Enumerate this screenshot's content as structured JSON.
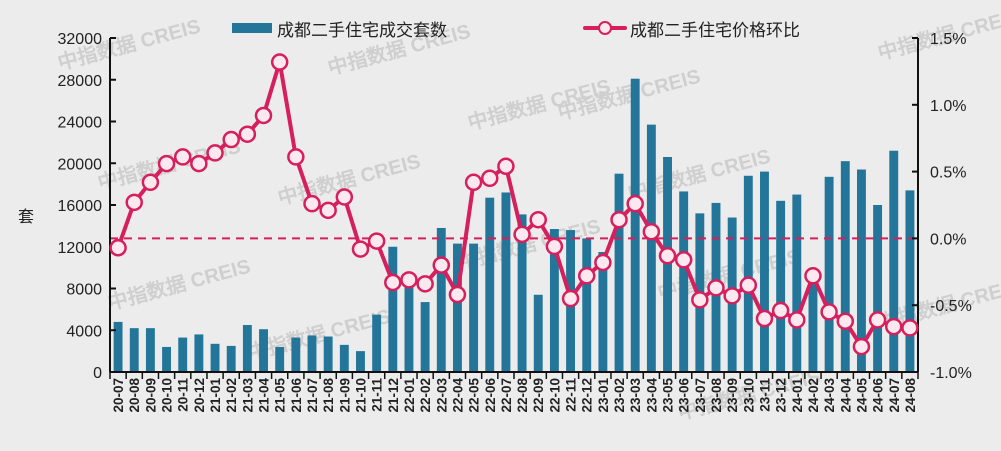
{
  "legend": {
    "bar_label": "成都二手住宅成交套数",
    "line_label": "成都二手住宅价格环比"
  },
  "axes": {
    "left_ylabel": "套",
    "left_ticks": [
      "0",
      "4000",
      "8000",
      "12000",
      "16000",
      "20000",
      "24000",
      "28000",
      "32000"
    ],
    "right_ticks": [
      "-1.0%",
      "-0.5%",
      "0.0%",
      "0.5%",
      "1.0%",
      "1.5%"
    ]
  },
  "watermark": "中指数据 CREIS",
  "colors": {
    "bar": "#23759a",
    "line": "#d61f5c",
    "background": "#ececec"
  },
  "chart_data": {
    "type": "bar+line",
    "title": "",
    "xlabel": "",
    "ylabel": "套",
    "ylim": [
      0,
      32000
    ],
    "y2lim": [
      -1.0,
      1.5
    ],
    "legend_position": "top",
    "grid": false,
    "reference_line": {
      "axis": "y2",
      "value": 0.0,
      "style": "dashed"
    },
    "categories": [
      "20-07",
      "20-08",
      "20-09",
      "20-10",
      "20-11",
      "20-12",
      "21-01",
      "21-02",
      "21-03",
      "21-04",
      "21-05",
      "21-06",
      "21-07",
      "21-08",
      "21-09",
      "21-10",
      "21-11",
      "21-12",
      "22-01",
      "22-02",
      "22-03",
      "22-04",
      "22-05",
      "22-06",
      "22-07",
      "22-08",
      "22-09",
      "22-10",
      "22-11",
      "22-12",
      "23-01",
      "23-02",
      "23-03",
      "23-04",
      "23-05",
      "23-06",
      "23-07",
      "23-08",
      "23-09",
      "23-10",
      "23-11",
      "23-12",
      "24-01",
      "24-02",
      "24-03",
      "24-04",
      "24-05",
      "24-06",
      "24-07",
      "24-08"
    ],
    "series": [
      {
        "name": "成都二手住宅成交套数",
        "type": "bar",
        "axis": "left",
        "values": [
          4800,
          4200,
          4200,
          2400,
          3300,
          3600,
          2700,
          2500,
          4500,
          4100,
          2400,
          3300,
          3500,
          3400,
          2600,
          2000,
          5500,
          12000,
          8800,
          6700,
          13800,
          12300,
          12300,
          16700,
          17200,
          15100,
          7400,
          13700,
          13600,
          12800,
          11500,
          19000,
          28100,
          23700,
          20600,
          17300,
          15200,
          16200,
          14800,
          18800,
          19200,
          16400,
          17000,
          8800,
          18700,
          20200,
          19400,
          16000,
          21200,
          17400
        ]
      },
      {
        "name": "成都二手住宅价格环比",
        "type": "line",
        "axis": "right",
        "unit": "%",
        "values": [
          -0.07,
          0.27,
          0.42,
          0.56,
          0.61,
          0.56,
          0.64,
          0.74,
          0.78,
          0.92,
          1.32,
          0.61,
          0.26,
          0.21,
          0.31,
          -0.08,
          -0.02,
          -0.33,
          -0.31,
          -0.34,
          -0.2,
          -0.42,
          0.42,
          0.45,
          0.54,
          0.03,
          0.14,
          -0.06,
          -0.45,
          -0.28,
          -0.18,
          0.14,
          0.26,
          0.05,
          -0.13,
          -0.16,
          -0.46,
          -0.37,
          -0.43,
          -0.35,
          -0.6,
          -0.54,
          -0.61,
          -0.28,
          -0.55,
          -0.62,
          -0.81,
          -0.61,
          -0.66,
          -0.67
        ]
      }
    ]
  }
}
